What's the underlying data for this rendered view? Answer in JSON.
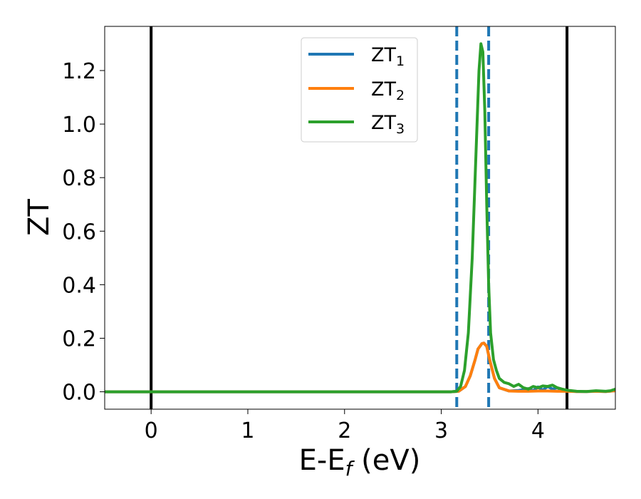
{
  "chart_data": {
    "type": "line",
    "xlabel": {
      "main": "E-E",
      "sub": "f",
      "unit": " (eV)"
    },
    "ylabel": "ZT",
    "xlim": [
      -0.48,
      4.8
    ],
    "ylim": [
      -0.065,
      1.365
    ],
    "xticks": [
      0,
      1,
      2,
      3,
      4
    ],
    "xtick_labels": [
      "0",
      "1",
      "2",
      "3",
      "4"
    ],
    "yticks": [
      0.0,
      0.2,
      0.4,
      0.6,
      0.8,
      1.0,
      1.2
    ],
    "ytick_labels": [
      "0.0",
      "0.2",
      "0.4",
      "0.6",
      "0.8",
      "1.0",
      "1.2"
    ],
    "grid": false,
    "legend_position": "top-center",
    "vlines_solid": [
      0.0,
      4.3
    ],
    "vlines_dashed": [
      3.16,
      3.49
    ],
    "series": [
      {
        "name": "ZT",
        "sub": "1",
        "color": "#1f77b4",
        "x": [
          -0.48,
          3.1,
          3.18,
          3.25,
          3.3,
          3.35,
          3.38,
          3.42,
          3.44,
          3.47,
          3.5,
          3.55,
          3.6,
          3.7,
          3.8,
          3.85,
          3.9,
          3.95,
          4.0,
          4.05,
          4.1,
          4.15,
          4.2,
          4.25,
          4.3,
          4.4,
          4.5,
          4.6,
          4.7,
          4.8
        ],
        "y": [
          0,
          0,
          0.002,
          0.02,
          0.06,
          0.12,
          0.16,
          0.18,
          0.182,
          0.17,
          0.12,
          0.05,
          0.015,
          0.003,
          0.005,
          0.008,
          0.012,
          0.004,
          0.018,
          0.006,
          0.02,
          0.01,
          0.015,
          0.005,
          0.004,
          0.001,
          0.001,
          0.002,
          0.001,
          0.004
        ]
      },
      {
        "name": "ZT",
        "sub": "2",
        "color": "#ff7f0e",
        "x": [
          -0.48,
          3.1,
          3.18,
          3.25,
          3.3,
          3.35,
          3.38,
          3.42,
          3.44,
          3.47,
          3.5,
          3.55,
          3.6,
          3.7,
          3.8,
          3.9,
          4.0,
          4.1,
          4.2,
          4.3,
          4.4,
          4.5,
          4.6,
          4.7,
          4.8
        ],
        "y": [
          0,
          0,
          0.002,
          0.02,
          0.06,
          0.12,
          0.16,
          0.18,
          0.182,
          0.17,
          0.12,
          0.05,
          0.015,
          0.003,
          0.002,
          0.002,
          0.003,
          0.003,
          0.002,
          0.002,
          0.001,
          0.001,
          0.002,
          0.001,
          0.004
        ]
      },
      {
        "name": "ZT",
        "sub": "3",
        "color": "#2ca02c",
        "x": [
          -0.48,
          3.1,
          3.16,
          3.2,
          3.24,
          3.28,
          3.32,
          3.36,
          3.39,
          3.41,
          3.43,
          3.45,
          3.47,
          3.49,
          3.51,
          3.54,
          3.57,
          3.6,
          3.65,
          3.7,
          3.75,
          3.8,
          3.85,
          3.9,
          3.95,
          4.0,
          4.05,
          4.1,
          4.15,
          4.2,
          4.25,
          4.3,
          4.4,
          4.5,
          4.6,
          4.7,
          4.75,
          4.8
        ],
        "y": [
          0,
          0,
          0.002,
          0.02,
          0.08,
          0.22,
          0.5,
          0.9,
          1.2,
          1.3,
          1.27,
          1.05,
          0.7,
          0.4,
          0.22,
          0.12,
          0.08,
          0.05,
          0.035,
          0.03,
          0.02,
          0.028,
          0.015,
          0.01,
          0.02,
          0.015,
          0.022,
          0.02,
          0.025,
          0.015,
          0.01,
          0.006,
          0.002,
          0.001,
          0.004,
          0.002,
          0.004,
          0.01
        ]
      }
    ]
  }
}
